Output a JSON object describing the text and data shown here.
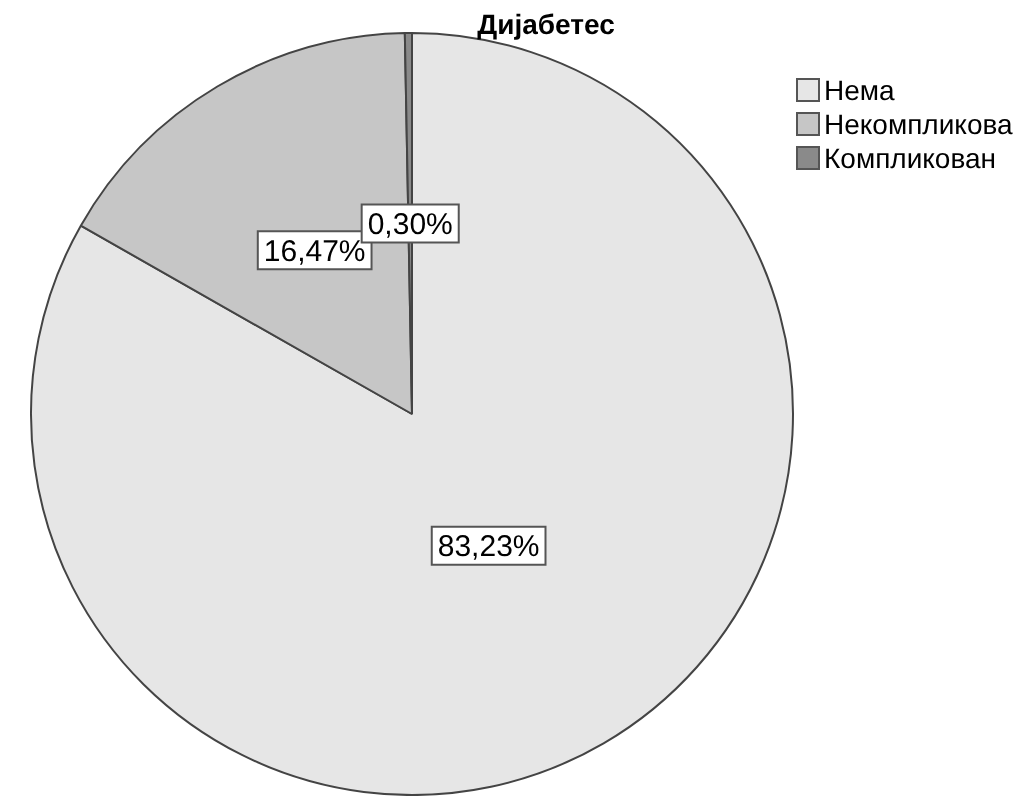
{
  "chart_data": {
    "type": "pie",
    "title": "Дијабетес",
    "categories": [
      "Нема",
      "Некомпликова",
      "Компликован"
    ],
    "values": [
      83.23,
      16.47,
      0.3
    ],
    "value_labels": [
      "83,23%",
      "16,47%",
      "0,30%"
    ],
    "colors": [
      "#e6e6e6",
      "#c6c6c6",
      "#8a8a8a"
    ],
    "legend": "top right"
  }
}
